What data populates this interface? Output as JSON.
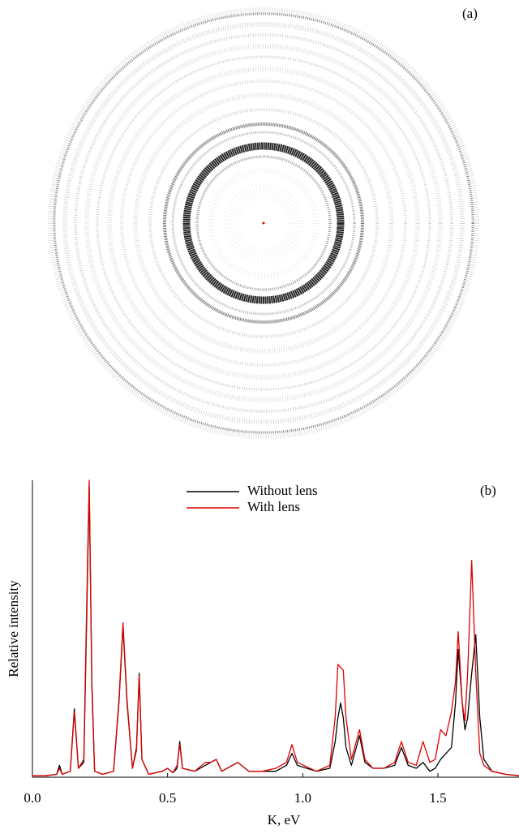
{
  "panel_a": {
    "label": "(a)"
  },
  "chart_data": {
    "type": "line",
    "label": "(b)",
    "xlabel": "K, eV",
    "ylabel": "Relative intensity",
    "x": [
      0,
      0.05,
      0.09,
      0.1,
      0.11,
      0.14,
      0.155,
      0.17,
      0.19,
      0.2,
      0.21,
      0.22,
      0.23,
      0.26,
      0.3,
      0.32,
      0.335,
      0.35,
      0.37,
      0.385,
      0.395,
      0.405,
      0.43,
      0.48,
      0.5,
      0.52,
      0.535,
      0.545,
      0.555,
      0.6,
      0.64,
      0.66,
      0.68,
      0.7,
      0.76,
      0.8,
      0.85,
      0.9,
      0.94,
      0.96,
      0.98,
      1.05,
      1.1,
      1.12,
      1.13,
      1.14,
      1.15,
      1.16,
      1.18,
      1.21,
      1.23,
      1.26,
      1.3,
      1.34,
      1.365,
      1.39,
      1.42,
      1.445,
      1.47,
      1.49,
      1.51,
      1.53,
      1.55,
      1.565,
      1.575,
      1.59,
      1.6,
      1.61,
      1.625,
      1.64,
      1.655,
      1.67,
      1.7,
      1.75,
      1.8
    ],
    "series": [
      {
        "name": "Without lens",
        "color": "#000000",
        "values": [
          0.5,
          0.5,
          1,
          4,
          1,
          2,
          23,
          3,
          5,
          50,
          98,
          30,
          2,
          1,
          2,
          25,
          51,
          25,
          3,
          10,
          35,
          6,
          1,
          2,
          3,
          1.5,
          3,
          12,
          3,
          2,
          4,
          5,
          6,
          2,
          5,
          2,
          2,
          2,
          4,
          8,
          4,
          2,
          3,
          12,
          20,
          25,
          20,
          10,
          4,
          14,
          5,
          3,
          3,
          4,
          10,
          4,
          3,
          5,
          2,
          3,
          6,
          8,
          10,
          25,
          43,
          25,
          16,
          20,
          35,
          48,
          20,
          6,
          2,
          1,
          0.5
        ]
      },
      {
        "name": "With lens",
        "color": "#e00000",
        "values": [
          0.5,
          0.5,
          1,
          3,
          1,
          2,
          22,
          3,
          6,
          55,
          100,
          32,
          2,
          1,
          2,
          26,
          52,
          26,
          3,
          9,
          34,
          6,
          1,
          2,
          3,
          1.5,
          4,
          11,
          3,
          2,
          5,
          5,
          6,
          2,
          5,
          2,
          2,
          3,
          5,
          11,
          5,
          2,
          4,
          20,
          38,
          37,
          36,
          20,
          6,
          16,
          6,
          3,
          3,
          5,
          12,
          5,
          4,
          12,
          5,
          6,
          16,
          14,
          22,
          32,
          49,
          25,
          19,
          35,
          73,
          35,
          8,
          4,
          2,
          1,
          0.5
        ]
      }
    ],
    "xlim": [
      0,
      1.8
    ],
    "ylim": [
      0,
      100
    ],
    "xticks": [
      {
        "value": 0,
        "label": "0.0"
      },
      0.5,
      {
        "value": 1,
        "label": "1.0"
      },
      1.5
    ],
    "legend": "top center"
  }
}
